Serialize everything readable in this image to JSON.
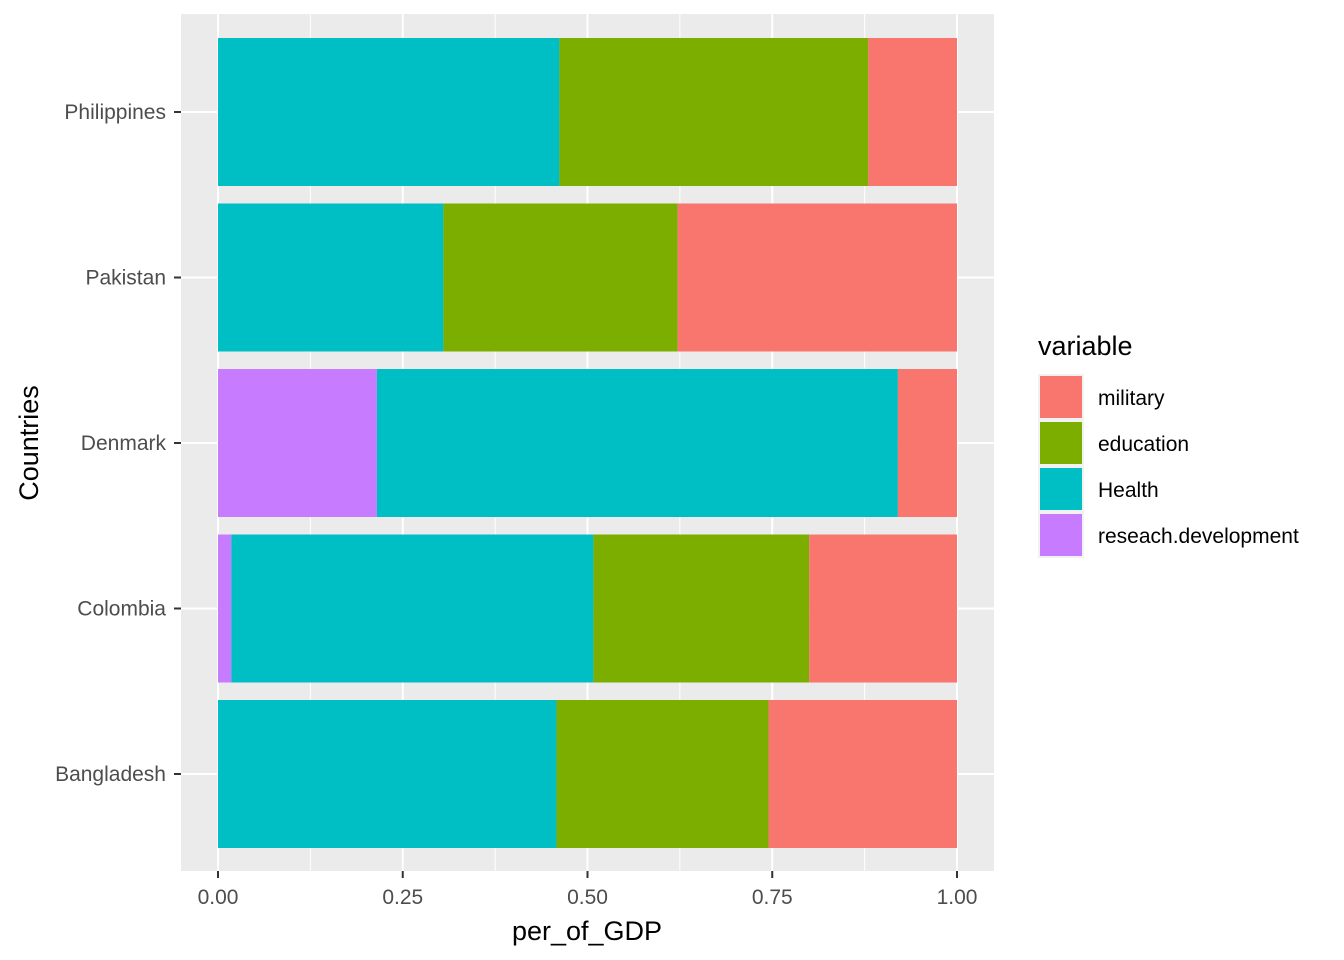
{
  "chart_data": {
    "type": "bar",
    "orientation": "horizontal",
    "stacked": true,
    "normalized": true,
    "categories": [
      "Bangladesh",
      "Colombia",
      "Denmark",
      "Pakistan",
      "Philippines"
    ],
    "series": [
      {
        "name": "reseach.development",
        "color": "#C77CFF",
        "values": [
          0.0,
          0.018,
          0.215,
          0.0,
          0.0
        ]
      },
      {
        "name": "Health",
        "color": "#00BFC4",
        "values": [
          0.458,
          0.49,
          0.705,
          0.305,
          0.462
        ]
      },
      {
        "name": "education",
        "color": "#7CAE00",
        "values": [
          0.287,
          0.292,
          0.0,
          0.317,
          0.418
        ]
      },
      {
        "name": "military",
        "color": "#F8766D",
        "values": [
          0.255,
          0.2,
          0.08,
          0.378,
          0.12
        ]
      }
    ],
    "xlabel": "per_of_GDP",
    "ylabel": "Countries",
    "xlim": [
      0,
      1
    ],
    "xticks": [
      "0.00",
      "0.25",
      "0.50",
      "0.75",
      "1.00"
    ],
    "grid": true,
    "legend": {
      "title": "variable",
      "placement": "right",
      "entries": [
        "military",
        "education",
        "Health",
        "reseach.development"
      ]
    }
  }
}
